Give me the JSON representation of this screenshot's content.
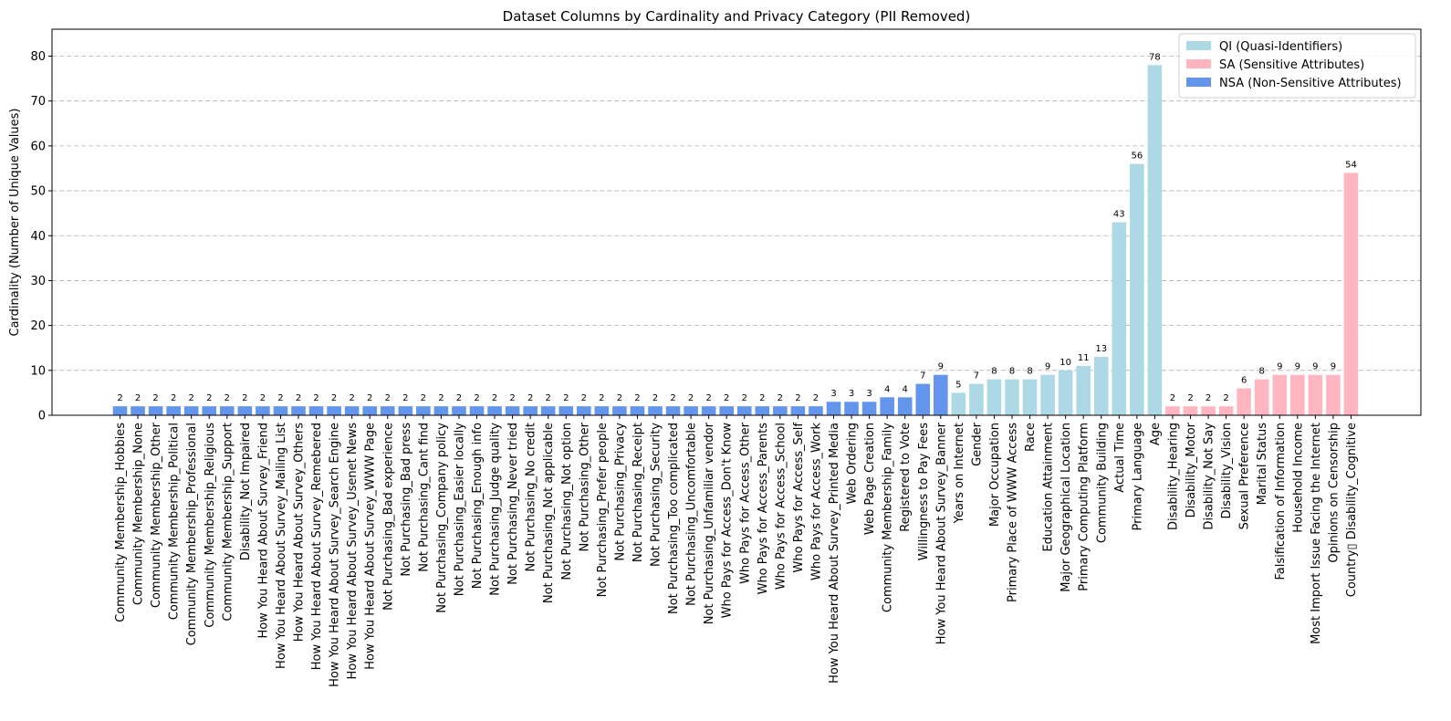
{
  "chart_data": {
    "type": "bar",
    "title": "Dataset Columns by Cardinality and Privacy Category (PII Removed)",
    "xlabel": "",
    "ylabel": "Cardinality (Number of Unique Values)",
    "ylim": [
      0,
      86
    ],
    "yticks": [
      0,
      10,
      20,
      30,
      40,
      50,
      60,
      70,
      80
    ],
    "grid": "y-dashed",
    "legend_position": "top-right",
    "colors": {
      "QI": "#add8e6",
      "SA": "#ffb6c1",
      "NSA": "#6495ed"
    },
    "legend": [
      {
        "key": "QI",
        "label": "QI (Quasi-Identifiers)"
      },
      {
        "key": "SA",
        "label": "SA (Sensitive Attributes)"
      },
      {
        "key": "NSA",
        "label": "NSA (Non-Sensitive Attributes)"
      }
    ],
    "categories": [
      "Community Membership_Hobbies",
      "Community Membership_None",
      "Community Membership_Other",
      "Community Membership_Political",
      "Community Membership_Professional",
      "Community Membership_Religious",
      "Community Membership_Support",
      "Disability_Not Impaired",
      "How You Heard About Survey_Friend",
      "How You Heard About Survey_Mailing List",
      "How You Heard About Survey_Others",
      "How You Heard About Survey_Remebered",
      "How You Heard About Survey_Search Engine",
      "How You Heard About Survey_Usenet News",
      "How You Heard About Survey_WWW Page",
      "Not Purchasing_Bad experience",
      "Not Purchasing_Bad press",
      "Not Purchasing_Cant find",
      "Not Purchasing_Company policy",
      "Not Purchasing_Easier locally",
      "Not Purchasing_Enough info",
      "Not Purchasing_Judge quality",
      "Not Purchasing_Never tried",
      "Not Purchasing_No credit",
      "Not Purchasing_Not applicable",
      "Not Purchasing_Not option",
      "Not Purchasing_Other",
      "Not Purchasing_Prefer people",
      "Not Purchasing_Privacy",
      "Not Purchasing_Receipt",
      "Not Purchasing_Security",
      "Not Purchasing_Too complicated",
      "Not Purchasing_Uncomfortable",
      "Not Purchasing_Unfamiliar vendor",
      "Who Pays for Access_Don't Know",
      "Who Pays for Access_Other",
      "Who Pays for Access_Parents",
      "Who Pays for Access_School",
      "Who Pays for Access_Self",
      "Who Pays for Access_Work",
      "How You Heard About Survey_Printed Media",
      "Web Ordering",
      "Web Page Creation",
      "Community Membership_Family",
      "Registered to Vote",
      "Willingness to Pay Fees",
      "How You Heard About Survey_Banner",
      "Years on Internet",
      "Gender",
      "Major Occupation",
      "Primary Place of WWW Access",
      "Race",
      "Education Attainment",
      "Major Geographical Location",
      "Primary Computing Platform",
      "Community Building",
      "Actual Time",
      "Primary Language",
      "Age",
      "Disability_Hearing",
      "Disability_Motor",
      "Disability_Not Say",
      "Disability_Vision",
      "Sexual Preference",
      "Marital Status",
      "Falsification of Information",
      "Household Income",
      "Most Import Issue Facing the Internet",
      "Opinions on Censorship",
      "Country▯ Disability_Cognitive"
    ],
    "values": [
      2,
      2,
      2,
      2,
      2,
      2,
      2,
      2,
      2,
      2,
      2,
      2,
      2,
      2,
      2,
      2,
      2,
      2,
      2,
      2,
      2,
      2,
      2,
      2,
      2,
      2,
      2,
      2,
      2,
      2,
      2,
      2,
      2,
      2,
      2,
      2,
      2,
      2,
      2,
      2,
      3,
      3,
      3,
      4,
      4,
      7,
      9,
      5,
      7,
      8,
      8,
      8,
      9,
      10,
      11,
      13,
      43,
      56,
      78,
      2,
      2,
      2,
      2,
      6,
      8,
      9,
      9,
      9,
      9,
      54
    ],
    "category_type": [
      "NSA",
      "NSA",
      "NSA",
      "NSA",
      "NSA",
      "NSA",
      "NSA",
      "NSA",
      "NSA",
      "NSA",
      "NSA",
      "NSA",
      "NSA",
      "NSA",
      "NSA",
      "NSA",
      "NSA",
      "NSA",
      "NSA",
      "NSA",
      "NSA",
      "NSA",
      "NSA",
      "NSA",
      "NSA",
      "NSA",
      "NSA",
      "NSA",
      "NSA",
      "NSA",
      "NSA",
      "NSA",
      "NSA",
      "NSA",
      "NSA",
      "NSA",
      "NSA",
      "NSA",
      "NSA",
      "NSA",
      "NSA",
      "NSA",
      "NSA",
      "NSA",
      "NSA",
      "NSA",
      "NSA",
      "QI",
      "QI",
      "QI",
      "QI",
      "QI",
      "QI",
      "QI",
      "QI",
      "QI",
      "QI",
      "QI",
      "QI",
      "SA",
      "SA",
      "SA",
      "SA",
      "SA",
      "SA",
      "SA",
      "SA",
      "SA",
      "SA",
      "SA"
    ]
  }
}
